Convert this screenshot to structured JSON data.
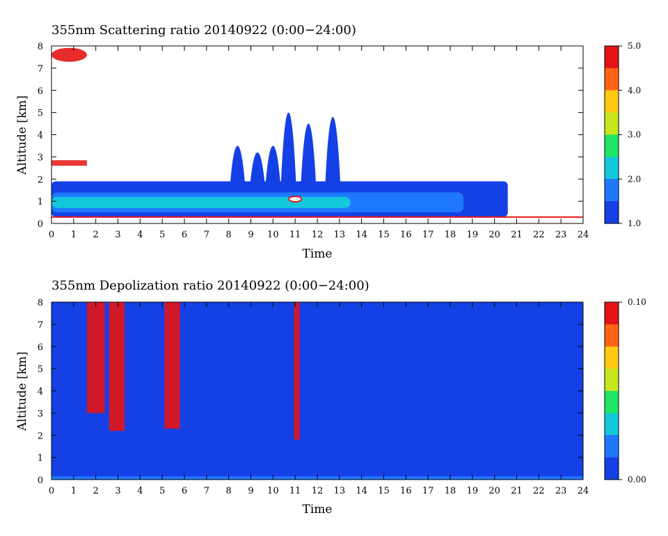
{
  "chart_data": [
    {
      "type": "heatmap",
      "title": "355nm Scattering ratio  20140922 (0:00−24:00)",
      "xlabel": "Time",
      "ylabel": "Altitude [km]",
      "xlim": [
        0,
        24
      ],
      "ylim": [
        0,
        8
      ],
      "x_ticks": [
        "0",
        "1",
        "2",
        "3",
        "4",
        "5",
        "6",
        "7",
        "8",
        "9",
        "10",
        "11",
        "12",
        "13",
        "14",
        "15",
        "16",
        "17",
        "18",
        "19",
        "20",
        "21",
        "22",
        "23",
        "24"
      ],
      "y_ticks": [
        "0",
        "1",
        "2",
        "3",
        "4",
        "5",
        "6",
        "7",
        "8"
      ],
      "colorbar": {
        "range": [
          1.0,
          5.0
        ],
        "tick_labels": [
          "1.0",
          "2.0",
          "3.0",
          "4.0",
          "5.0"
        ],
        "colors": [
          "#1440e6",
          "#1e78ff",
          "#14c8dc",
          "#1ee664",
          "#c8e61e",
          "#ffc814",
          "#ff6414",
          "#e61414"
        ]
      },
      "features": [
        {
          "kind": "boundary_layer",
          "t_start": 0,
          "t_end": 20.6,
          "top_km": 1.9,
          "peak_ratio": 2.3
        },
        {
          "kind": "convective_plumes",
          "times": [
            8.4,
            9.3,
            10.0,
            10.7,
            11.6,
            12.7
          ],
          "tops_km": [
            3.5,
            3.2,
            3.5,
            5.0,
            4.5,
            4.8
          ]
        },
        {
          "kind": "cloud",
          "t": 11.0,
          "alt_km": 1.1,
          "ratio": 5.0
        },
        {
          "kind": "cloud_layer",
          "t_start": 0.0,
          "t_end": 1.6,
          "alt_km": 2.7,
          "ratio": 5.0
        },
        {
          "kind": "high_cloud",
          "t_start": 0.0,
          "t_end": 1.6,
          "alt_km": 7.6,
          "ratio": 4.5
        }
      ]
    },
    {
      "type": "heatmap",
      "title": "355nm Depolization ratio  20140922 (0:00−24:00)",
      "xlabel": "Time",
      "ylabel": "Altitude [km]",
      "xlim": [
        0,
        24
      ],
      "ylim": [
        0,
        8
      ],
      "x_ticks": [
        "0",
        "1",
        "2",
        "3",
        "4",
        "5",
        "6",
        "7",
        "8",
        "9",
        "10",
        "11",
        "12",
        "13",
        "14",
        "15",
        "16",
        "17",
        "18",
        "19",
        "20",
        "21",
        "22",
        "23",
        "24"
      ],
      "y_ticks": [
        "0",
        "1",
        "2",
        "3",
        "4",
        "5",
        "6",
        "7",
        "8"
      ],
      "colorbar": {
        "range": [
          0.0,
          0.1
        ],
        "tick_labels": [
          "0.00",
          "0.10"
        ],
        "colors": [
          "#1440e6",
          "#1e78ff",
          "#14c8dc",
          "#1ee664",
          "#c8e61e",
          "#ffc814",
          "#ff6414",
          "#e61414"
        ]
      },
      "features": [
        {
          "kind": "high_depol_column",
          "t_start": 1.6,
          "t_end": 2.4,
          "bottom_km": 3.0,
          "top_km": 8.0
        },
        {
          "kind": "high_depol_column",
          "t_start": 2.6,
          "t_end": 3.3,
          "bottom_km": 2.2,
          "top_km": 8.0
        },
        {
          "kind": "high_depol_column",
          "t_start": 5.1,
          "t_end": 5.8,
          "bottom_km": 2.3,
          "top_km": 8.0
        },
        {
          "kind": "high_depol_column",
          "t_start": 10.95,
          "t_end": 11.2,
          "bottom_km": 1.8,
          "top_km": 8.0
        }
      ]
    }
  ]
}
